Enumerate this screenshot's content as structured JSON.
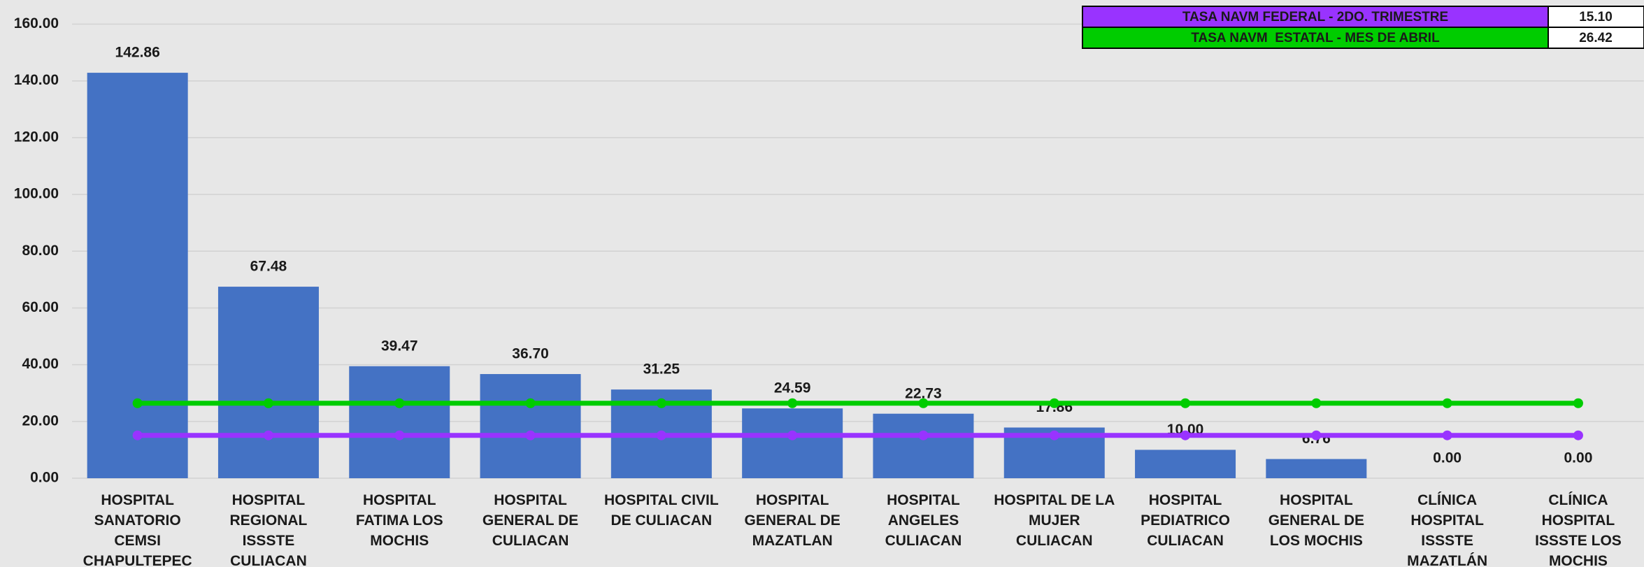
{
  "chart_data": {
    "type": "bar",
    "categories": [
      "HOSPITAL SANATORIO CEMSI CHAPULTEPEC",
      "HOSPITAL REGIONAL ISSSTE CULIACAN",
      "HOSPITAL FATIMA LOS MOCHIS",
      "HOSPITAL GENERAL DE CULIACAN",
      "HOSPITAL CIVIL DE CULIACAN",
      "HOSPITAL GENERAL DE MAZATLAN",
      "HOSPITAL ANGELES CULIACAN",
      "HOSPITAL DE LA MUJER CULIACAN",
      "HOSPITAL PEDIATRICO CULIACAN",
      "HOSPITAL GENERAL DE LOS MOCHIS",
      "CLÍNICA HOSPITAL ISSSTE MAZATLÁN",
      "CLÍNICA HOSPITAL ISSSTE LOS MOCHIS"
    ],
    "series": [
      {
        "type": "bar",
        "color": "#4472c4",
        "values": [
          142.86,
          67.48,
          39.47,
          36.7,
          31.25,
          24.59,
          22.73,
          17.86,
          10,
          6.76,
          0,
          0
        ],
        "value_labels": [
          "142.86",
          "67.48",
          "39.47",
          "36.70",
          "31.25",
          "24.59",
          "22.73",
          "17.86",
          "10.00",
          "6.76",
          "0.00",
          "0.00"
        ]
      },
      {
        "type": "line",
        "name": "TASA NAVM FEDERAL - 2DO. TRIMESTRE",
        "color": "#9933ff",
        "level_label": "15.10",
        "values": [
          15.1,
          15.1,
          15.1,
          15.1,
          15.1,
          15.1,
          15.1,
          15.1,
          15.1,
          15.1,
          15.1,
          15.1
        ]
      },
      {
        "type": "line",
        "name": "TASA NAVM  ESTATAL - MES DE ABRIL",
        "color": "#00cc00",
        "level_label": "26.42",
        "values": [
          26.42,
          26.42,
          26.42,
          26.42,
          26.42,
          26.42,
          26.42,
          26.42,
          26.42,
          26.42,
          26.42,
          26.42
        ]
      }
    ],
    "ylim": [
      0,
      160
    ],
    "yticks": [
      {
        "value": 0,
        "label": "0.00"
      },
      {
        "value": 20,
        "label": "20.00"
      },
      {
        "value": 40,
        "label": "40.00"
      },
      {
        "value": 60,
        "label": "60.00"
      },
      {
        "value": 80,
        "label": "80.00"
      },
      {
        "value": 100,
        "label": "100.00"
      },
      {
        "value": 120,
        "label": "120.00"
      },
      {
        "value": 140,
        "label": "140.00"
      },
      {
        "value": 160,
        "label": "160.00"
      }
    ],
    "grid": true
  }
}
